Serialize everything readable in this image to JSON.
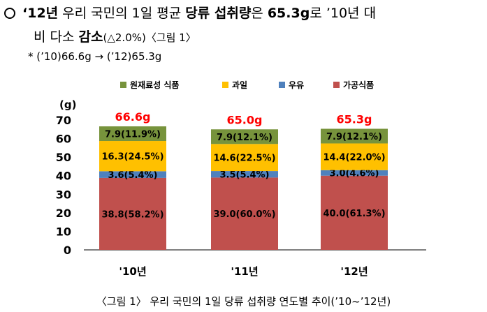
{
  "text": {
    "line1_year": "‘12년",
    "line1_a": " 우리 국민의 1일 평균 ",
    "line1_b": "당류 섭취량",
    "line1_c": "은 ",
    "line1_d": "65.3g",
    "line1_e": "로 ’10년 대",
    "line2_a": "비 다소 ",
    "line2_b": "감소",
    "line2_c": "(△2.0%)",
    "line2_d": "〈그림 1〉",
    "line3": "* (’10)66.6g → (’12)65.3g",
    "caption": "〈그림 1〉 우리 국민의 1일 당류 섭취량 연도별 추이(’10~’12년)"
  },
  "chart_data": {
    "type": "bar",
    "stacked": true,
    "unit_label": "(g)",
    "categories": [
      "'10년",
      "'11년",
      "'12년"
    ],
    "totals": [
      "66.6g",
      "65.0g",
      "65.3g"
    ],
    "ylim": [
      0,
      70
    ],
    "yticks": [
      0,
      10,
      20,
      30,
      40,
      50,
      60,
      70
    ],
    "legend_position": "top",
    "series": [
      {
        "name": "가공식품",
        "color": "#c0504d",
        "values": [
          38.8,
          39.0,
          40.0
        ],
        "labels": [
          "38.8(58.2%)",
          "39.0(60.0%)",
          "40.0(61.3%)"
        ]
      },
      {
        "name": "우유",
        "color": "#4f81bd",
        "values": [
          3.6,
          3.5,
          3.0
        ],
        "labels": [
          "3.6(5.4%)",
          "3.5(5.4%)",
          "3.0(4.6%)"
        ]
      },
      {
        "name": "과일",
        "color": "#ffc000",
        "values": [
          16.3,
          14.6,
          14.4
        ],
        "labels": [
          "16.3(24.5%)",
          "14.6(22.5%)",
          "14.4(22.0%)"
        ]
      },
      {
        "name": "원재료성 식품",
        "color": "#77933c",
        "values": [
          7.9,
          7.9,
          7.9
        ],
        "labels": [
          "7.9(11.9%)",
          "7.9(12.1%)",
          "7.9(12.1%)"
        ]
      }
    ],
    "legend_order": [
      "원재료성 식품",
      "과일",
      "우유",
      "가공식품"
    ],
    "total_label_color": "#ff0000",
    "grid": false
  }
}
